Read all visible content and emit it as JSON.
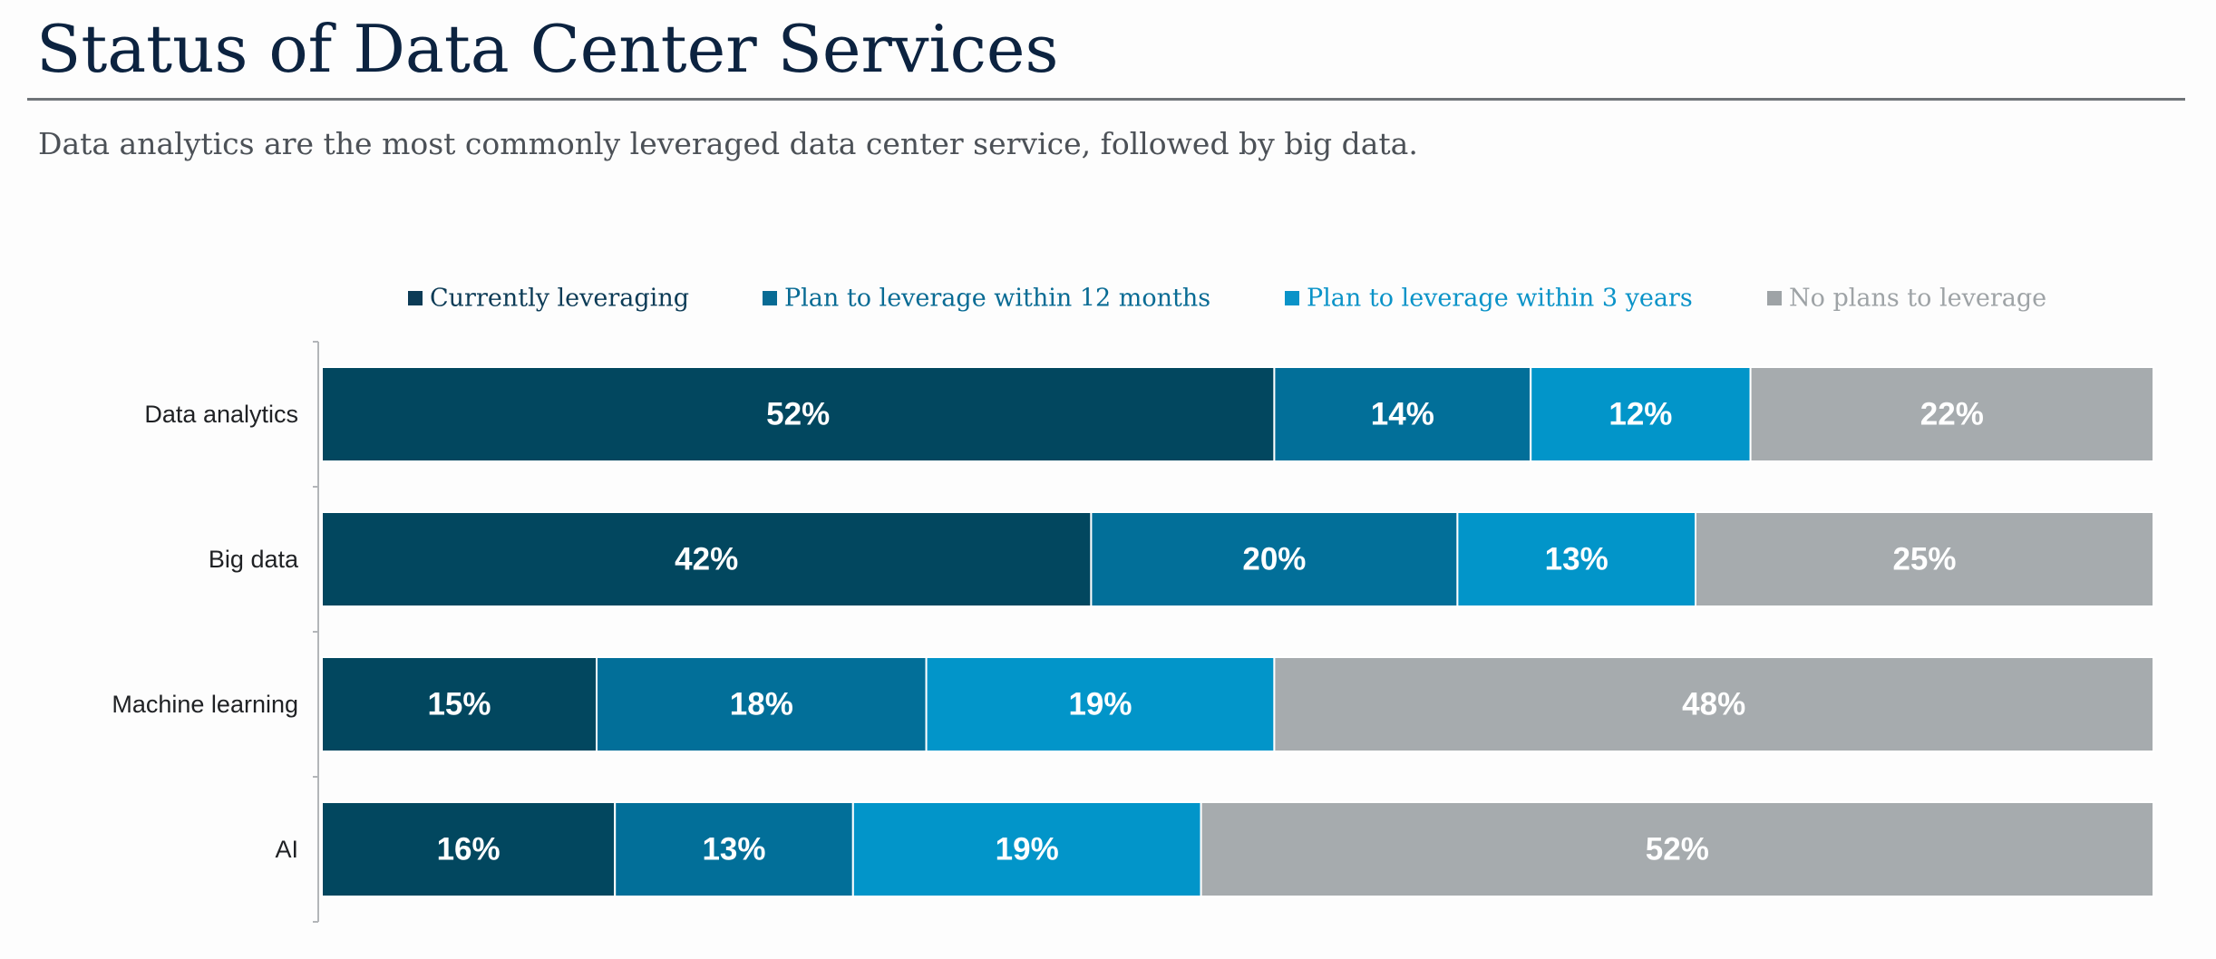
{
  "header": {
    "title": "Status of Data Center Services",
    "subtitle": "Data analytics are the most commonly leveraged data center service, followed by big data."
  },
  "chart_data": {
    "type": "bar",
    "orientation": "horizontal",
    "stacked": true,
    "percent_stacked": true,
    "categories": [
      "Data analytics",
      "Big data",
      "Machine learning",
      "AI"
    ],
    "series": [
      {
        "name": "Currently leveraging",
        "values": [
          52,
          42,
          15,
          16
        ],
        "color": "#02475f",
        "legend_color": "#0c3b56"
      },
      {
        "name": "Plan to leverage within 12 months",
        "values": [
          14,
          20,
          18,
          13
        ],
        "color": "#026f99",
        "legend_color": "#086b94"
      },
      {
        "name": "Plan to leverage within 3 years",
        "values": [
          12,
          13,
          19,
          19
        ],
        "color": "#0295c9",
        "legend_color": "#0a93c8"
      },
      {
        "name": "No plans to leverage",
        "values": [
          22,
          25,
          48,
          52
        ],
        "color": "#a6abae",
        "legend_color": "#9ea3a6"
      }
    ],
    "data_labels": [
      [
        "52%",
        "14%",
        "12%",
        "22%"
      ],
      [
        "42%",
        "20%",
        "13%",
        "25%"
      ],
      [
        "15%",
        "18%",
        "19%",
        "48%"
      ],
      [
        "16%",
        "13%",
        "19%",
        "52%"
      ]
    ],
    "xlim": [
      0,
      100
    ],
    "legend_position": "top",
    "grid": false,
    "title": "",
    "xlabel": "",
    "ylabel": ""
  }
}
